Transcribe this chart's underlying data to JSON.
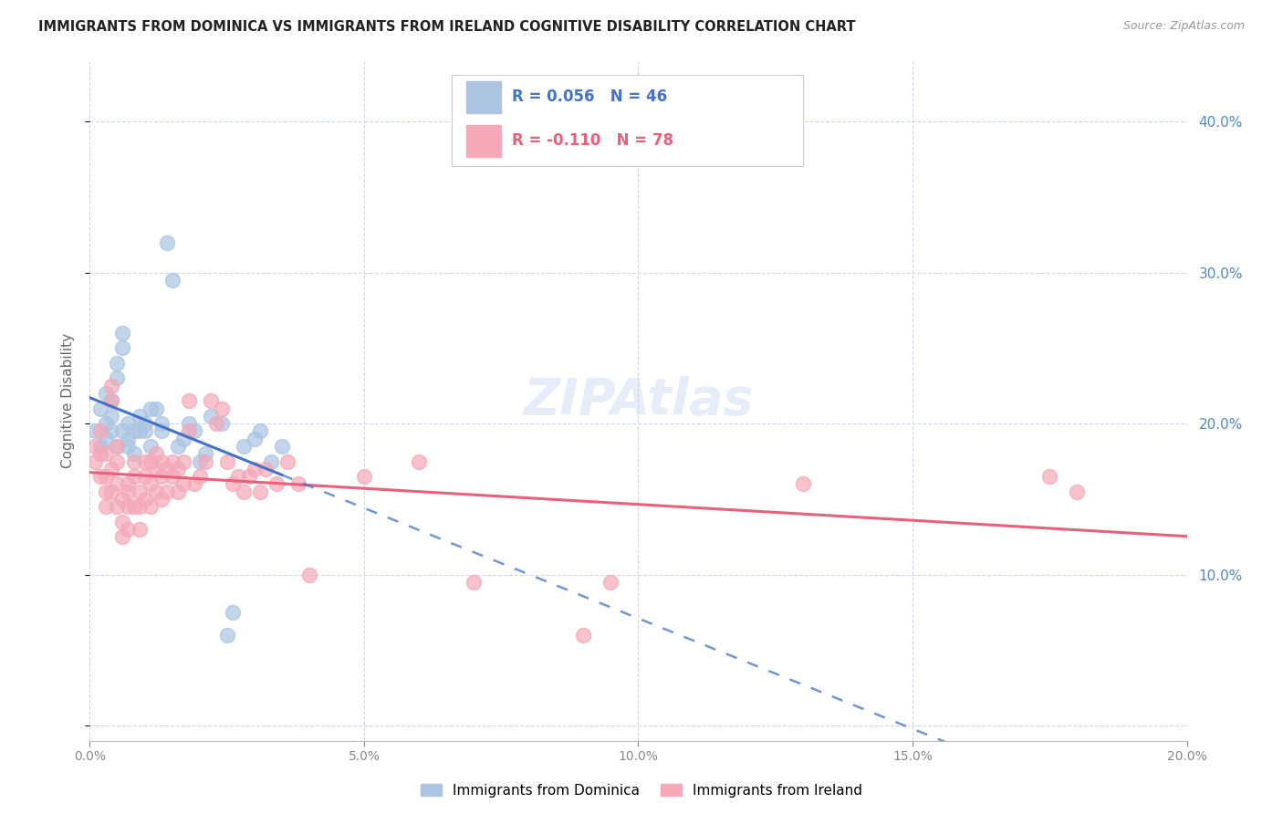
{
  "title": "IMMIGRANTS FROM DOMINICA VS IMMIGRANTS FROM IRELAND COGNITIVE DISABILITY CORRELATION CHART",
  "source": "Source: ZipAtlas.com",
  "ylabel": "Cognitive Disability",
  "xlim": [
    0.0,
    0.2
  ],
  "ylim": [
    -0.01,
    0.44
  ],
  "dominica_R": 0.056,
  "dominica_N": 46,
  "ireland_R": -0.11,
  "ireland_N": 78,
  "dominica_color": "#aac4e2",
  "ireland_color": "#f4a8b8",
  "dominica_line_color": "#4472c4",
  "ireland_line_color": "#e8607a",
  "background_color": "#ffffff",
  "grid_color": "#ccd8ee",
  "title_color": "#222222",
  "right_axis_color": "#5588bb",
  "dominica_x": [
    0.001,
    0.002,
    0.002,
    0.003,
    0.003,
    0.003,
    0.004,
    0.004,
    0.004,
    0.005,
    0.005,
    0.005,
    0.006,
    0.006,
    0.006,
    0.007,
    0.007,
    0.007,
    0.008,
    0.008,
    0.009,
    0.009,
    0.01,
    0.01,
    0.011,
    0.011,
    0.012,
    0.013,
    0.013,
    0.014,
    0.015,
    0.016,
    0.017,
    0.018,
    0.019,
    0.02,
    0.021,
    0.022,
    0.024,
    0.025,
    0.026,
    0.028,
    0.03,
    0.031,
    0.033,
    0.035
  ],
  "dominica_y": [
    0.195,
    0.21,
    0.185,
    0.2,
    0.19,
    0.22,
    0.205,
    0.195,
    0.215,
    0.24,
    0.23,
    0.185,
    0.25,
    0.26,
    0.195,
    0.2,
    0.19,
    0.185,
    0.195,
    0.18,
    0.195,
    0.205,
    0.2,
    0.195,
    0.21,
    0.185,
    0.21,
    0.195,
    0.2,
    0.32,
    0.295,
    0.185,
    0.19,
    0.2,
    0.195,
    0.175,
    0.18,
    0.205,
    0.2,
    0.06,
    0.075,
    0.185,
    0.19,
    0.195,
    0.175,
    0.185
  ],
  "ireland_x": [
    0.001,
    0.001,
    0.002,
    0.002,
    0.002,
    0.003,
    0.003,
    0.003,
    0.003,
    0.004,
    0.004,
    0.004,
    0.004,
    0.005,
    0.005,
    0.005,
    0.005,
    0.006,
    0.006,
    0.006,
    0.007,
    0.007,
    0.007,
    0.007,
    0.008,
    0.008,
    0.008,
    0.009,
    0.009,
    0.009,
    0.01,
    0.01,
    0.01,
    0.011,
    0.011,
    0.011,
    0.012,
    0.012,
    0.012,
    0.013,
    0.013,
    0.013,
    0.014,
    0.014,
    0.015,
    0.015,
    0.016,
    0.016,
    0.017,
    0.017,
    0.018,
    0.018,
    0.019,
    0.02,
    0.021,
    0.022,
    0.023,
    0.024,
    0.025,
    0.026,
    0.027,
    0.028,
    0.029,
    0.03,
    0.031,
    0.032,
    0.034,
    0.036,
    0.038,
    0.04,
    0.05,
    0.06,
    0.07,
    0.09,
    0.095,
    0.13,
    0.175,
    0.18
  ],
  "ireland_y": [
    0.185,
    0.175,
    0.195,
    0.18,
    0.165,
    0.155,
    0.145,
    0.165,
    0.18,
    0.225,
    0.215,
    0.17,
    0.155,
    0.16,
    0.175,
    0.145,
    0.185,
    0.125,
    0.135,
    0.15,
    0.155,
    0.13,
    0.145,
    0.16,
    0.165,
    0.145,
    0.175,
    0.145,
    0.13,
    0.155,
    0.165,
    0.15,
    0.175,
    0.175,
    0.145,
    0.16,
    0.18,
    0.155,
    0.17,
    0.15,
    0.175,
    0.165,
    0.17,
    0.155,
    0.165,
    0.175,
    0.155,
    0.17,
    0.16,
    0.175,
    0.195,
    0.215,
    0.16,
    0.165,
    0.175,
    0.215,
    0.2,
    0.21,
    0.175,
    0.16,
    0.165,
    0.155,
    0.165,
    0.17,
    0.155,
    0.17,
    0.16,
    0.175,
    0.16,
    0.1,
    0.165,
    0.175,
    0.095,
    0.06,
    0.095,
    0.16,
    0.165,
    0.155
  ]
}
